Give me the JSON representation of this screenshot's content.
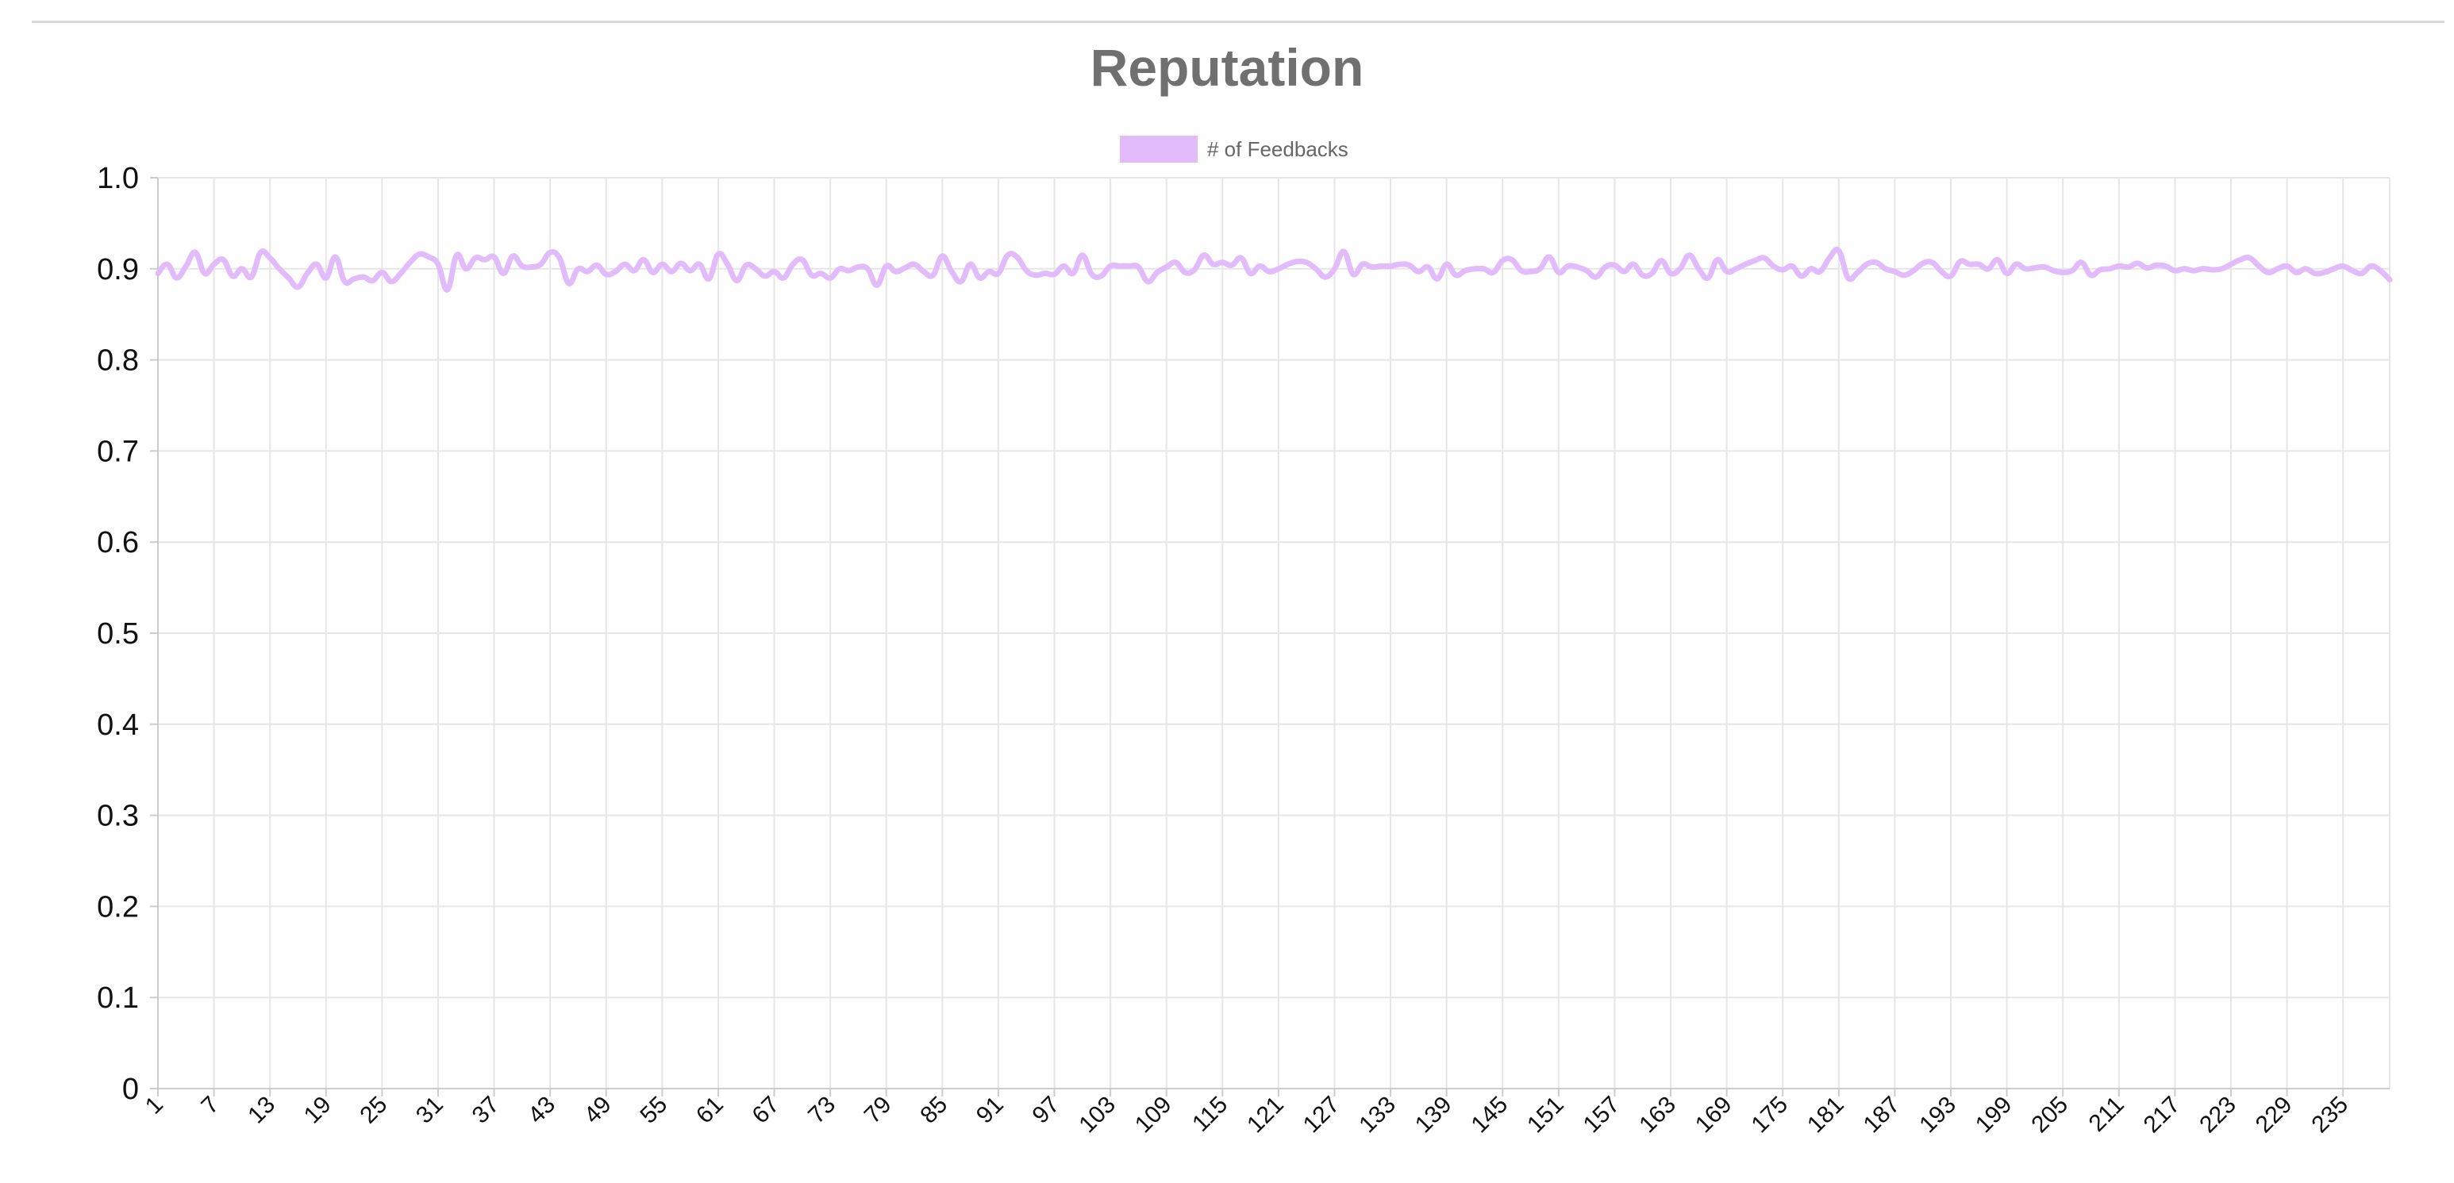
{
  "chart_data": {
    "type": "line",
    "title": "Reputation",
    "legend_position": "top-center",
    "grid": true,
    "ylim": [
      0,
      1.0
    ],
    "yticks": [
      "0",
      "0.1",
      "0.2",
      "0.3",
      "0.4",
      "0.5",
      "0.6",
      "0.7",
      "0.8",
      "0.9",
      "1.0"
    ],
    "x_count": 240,
    "x_tick_labels": [
      "1",
      "7",
      "13",
      "19",
      "25",
      "31",
      "37",
      "43",
      "49",
      "55",
      "61",
      "67",
      "73",
      "79",
      "85",
      "91",
      "97",
      "103",
      "109",
      "115",
      "121",
      "127",
      "133",
      "139",
      "145",
      "151",
      "157",
      "163",
      "169",
      "175",
      "181",
      "187",
      "193",
      "199",
      "205",
      "211",
      "217",
      "223",
      "229",
      "235"
    ],
    "series": [
      {
        "name": "# of Feedbacks",
        "color": "#e2bbfb",
        "values": [
          0.895,
          0.905,
          0.89,
          0.903,
          0.918,
          0.895,
          0.905,
          0.91,
          0.892,
          0.9,
          0.891,
          0.918,
          0.912,
          0.9,
          0.89,
          0.88,
          0.895,
          0.905,
          0.89,
          0.913,
          0.886,
          0.889,
          0.891,
          0.887,
          0.896,
          0.886,
          0.895,
          0.907,
          0.916,
          0.913,
          0.905,
          0.877,
          0.915,
          0.9,
          0.912,
          0.91,
          0.913,
          0.895,
          0.914,
          0.903,
          0.902,
          0.905,
          0.918,
          0.912,
          0.884,
          0.9,
          0.897,
          0.904,
          0.894,
          0.897,
          0.905,
          0.898,
          0.91,
          0.896,
          0.905,
          0.897,
          0.906,
          0.898,
          0.905,
          0.889,
          0.916,
          0.905,
          0.887,
          0.904,
          0.9,
          0.892,
          0.897,
          0.89,
          0.905,
          0.91,
          0.893,
          0.895,
          0.89,
          0.9,
          0.898,
          0.902,
          0.9,
          0.882,
          0.903,
          0.897,
          0.901,
          0.905,
          0.897,
          0.893,
          0.914,
          0.897,
          0.886,
          0.905,
          0.89,
          0.897,
          0.895,
          0.915,
          0.913,
          0.898,
          0.893,
          0.895,
          0.894,
          0.903,
          0.895,
          0.915,
          0.894,
          0.892,
          0.903,
          0.903,
          0.903,
          0.902,
          0.886,
          0.896,
          0.902,
          0.907,
          0.896,
          0.899,
          0.915,
          0.905,
          0.907,
          0.904,
          0.912,
          0.895,
          0.903,
          0.897,
          0.9,
          0.905,
          0.908,
          0.907,
          0.9,
          0.891,
          0.9,
          0.919,
          0.894,
          0.905,
          0.902,
          0.903,
          0.903,
          0.905,
          0.904,
          0.897,
          0.902,
          0.889,
          0.905,
          0.893,
          0.898,
          0.9,
          0.9,
          0.896,
          0.909,
          0.91,
          0.898,
          0.897,
          0.9,
          0.913,
          0.896,
          0.903,
          0.902,
          0.898,
          0.891,
          0.902,
          0.904,
          0.897,
          0.905,
          0.893,
          0.895,
          0.909,
          0.895,
          0.9,
          0.915,
          0.9,
          0.89,
          0.91,
          0.897,
          0.9,
          0.905,
          0.909,
          0.912,
          0.903,
          0.899,
          0.903,
          0.892,
          0.9,
          0.897,
          0.912,
          0.92,
          0.89,
          0.896,
          0.905,
          0.907,
          0.9,
          0.897,
          0.893,
          0.898,
          0.906,
          0.907,
          0.897,
          0.892,
          0.908,
          0.905,
          0.905,
          0.9,
          0.91,
          0.895,
          0.905,
          0.9,
          0.901,
          0.902,
          0.898,
          0.896,
          0.898,
          0.907,
          0.893,
          0.899,
          0.9,
          0.903,
          0.902,
          0.906,
          0.901,
          0.904,
          0.903,
          0.898,
          0.9,
          0.898,
          0.9,
          0.899,
          0.9,
          0.905,
          0.91,
          0.912,
          0.903,
          0.896,
          0.9,
          0.903,
          0.896,
          0.9,
          0.895,
          0.896,
          0.9,
          0.903,
          0.898,
          0.895,
          0.903,
          0.898,
          0.888
        ]
      }
    ]
  }
}
